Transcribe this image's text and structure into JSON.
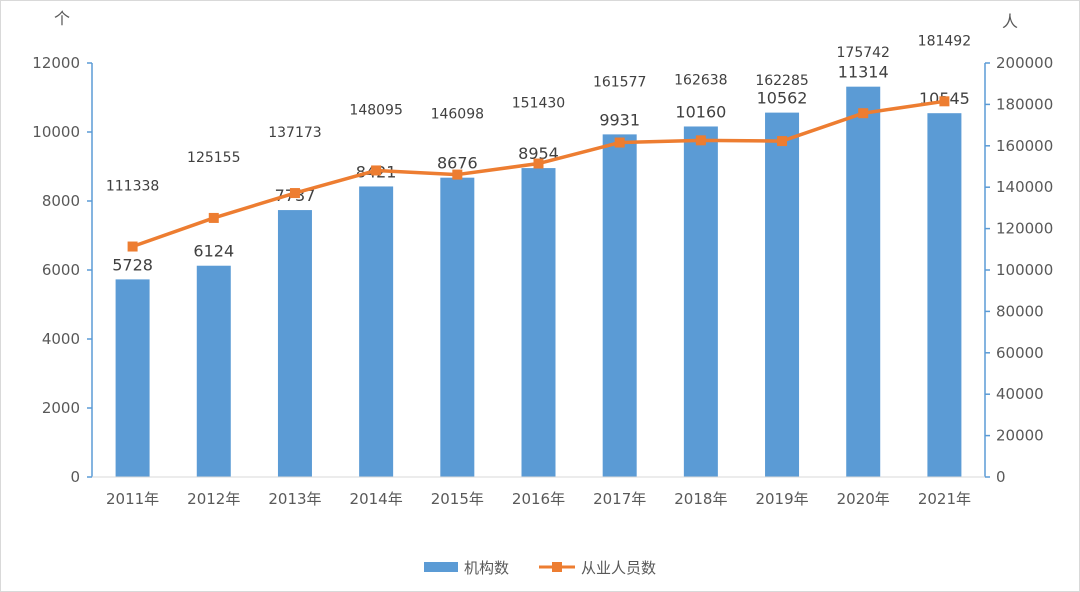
{
  "chart_data": {
    "type": "bar",
    "categories": [
      "2011年",
      "2012年",
      "2013年",
      "2014年",
      "2015年",
      "2016年",
      "2017年",
      "2018年",
      "2019年",
      "2020年",
      "2021年"
    ],
    "series": [
      {
        "name": "机构数",
        "type": "bar",
        "axis": "left",
        "color": "#5b9bd5",
        "values": [
          5728,
          6124,
          7737,
          8421,
          8676,
          8954,
          9931,
          10160,
          10562,
          11314,
          10545
        ]
      },
      {
        "name": "从业人员数",
        "type": "line",
        "axis": "right",
        "color": "#ed7d31",
        "values": [
          111338,
          125155,
          137173,
          148095,
          146098,
          151430,
          161577,
          162638,
          162285,
          175742,
          181492
        ]
      }
    ],
    "y_left": {
      "unit": "个",
      "lim": [
        0,
        12000
      ],
      "ticks": [
        "0",
        "2000",
        "4000",
        "6000",
        "8000",
        "10000",
        "12000"
      ]
    },
    "y_right": {
      "unit": "人",
      "lim": [
        0,
        200000
      ],
      "ticks": [
        "0",
        "20000",
        "40000",
        "60000",
        "80000",
        "100000",
        "120000",
        "140000",
        "160000",
        "180000",
        "200000"
      ]
    },
    "grid": false,
    "legend": "bottom"
  }
}
